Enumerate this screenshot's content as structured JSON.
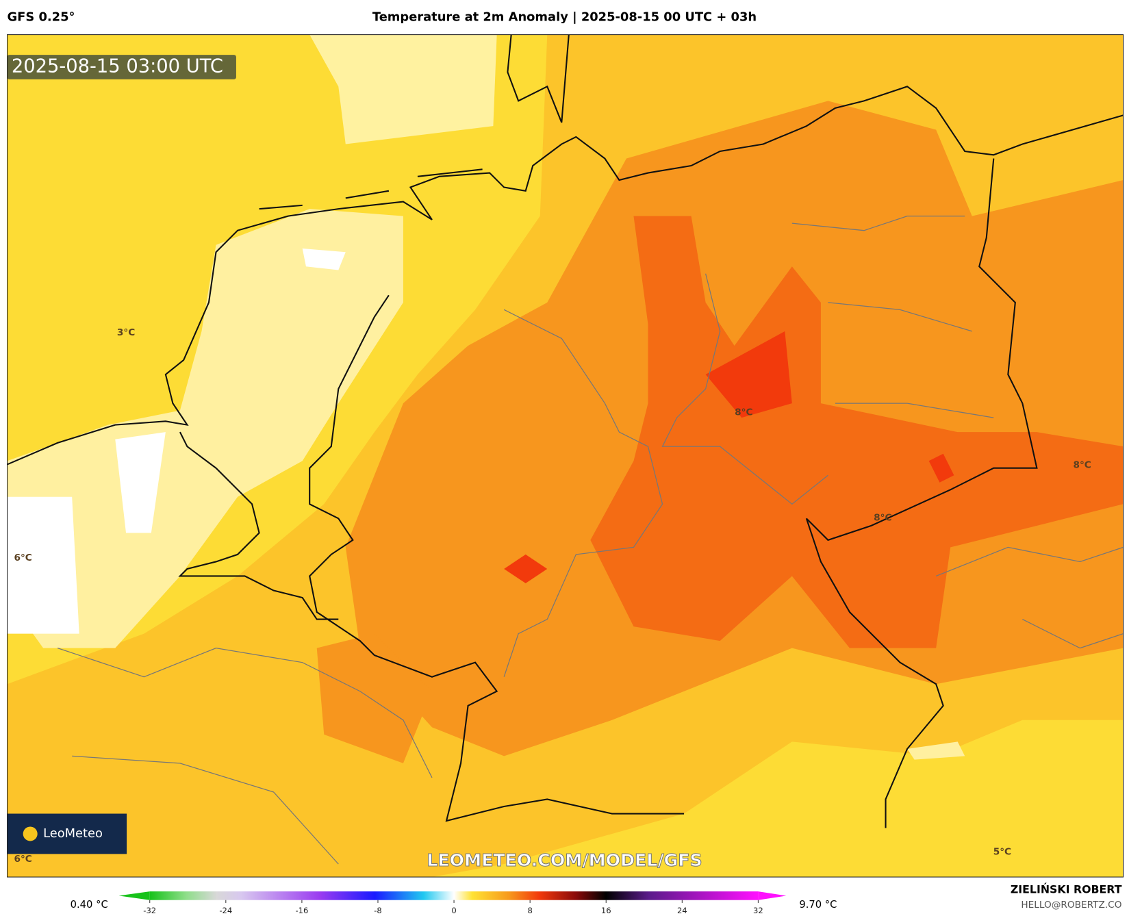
{
  "header": {
    "model": "GFS 0.25°",
    "title": "Temperature at 2m Anomaly | 2025-08-15 00 UTC + 03h"
  },
  "timestamp": "2025-08-15 03:00 UTC",
  "map_labels": [
    "3°C",
    "8°C",
    "8°C",
    "8°C",
    "6°C",
    "6°C",
    "5°C"
  ],
  "logo": "LeoMeteo",
  "watermark": "LEOMETEO.COM/MODEL/GFS",
  "colorbar": {
    "min_label": "0.40 °C",
    "max_label": "9.70 °C",
    "range": [
      -32,
      32
    ],
    "ticks": [
      -32,
      -24,
      -16,
      -8,
      0,
      8,
      16,
      24,
      32
    ]
  },
  "footer": {
    "author": "ZIELIŃSKI ROBERT",
    "email": "HELLO@ROBERTZ.CO"
  }
}
